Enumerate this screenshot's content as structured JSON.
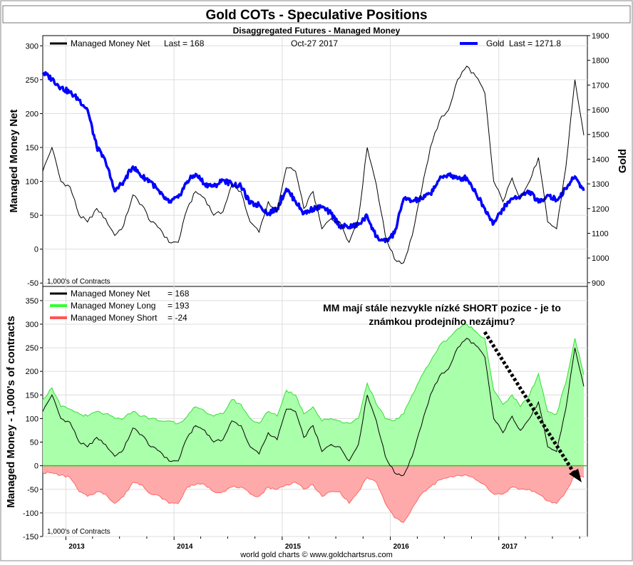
{
  "title": "Gold COTs - Speculative Positions",
  "subtitle": "Disaggregated Futures - Managed Money",
  "credit": "world gold charts © www.goldchartsrus.com",
  "annotation": {
    "line1": "MM mají stále nezvykle nízké SHORT pozice - je to",
    "line2": "známkou prodejního nezájmu?"
  },
  "colors": {
    "net": "#000000",
    "gold": "#0000ff",
    "long_fill": "#aaffaa",
    "long_line": "#33dd33",
    "short_fill": "#ffaaaa",
    "short_line": "#ff6666"
  },
  "x_axis": {
    "ticks": [
      "2013",
      "2014",
      "2015",
      "2016",
      "2017"
    ]
  },
  "chart_data": [
    {
      "type": "line",
      "xlabel": "",
      "ylabel": "Managed Money Net",
      "y2label": "Gold",
      "ylim": [
        -55,
        315
      ],
      "y2lim": [
        885,
        1900
      ],
      "yticks": [
        300,
        250,
        200,
        150,
        100,
        50,
        0,
        -50
      ],
      "y2ticks": [
        1900,
        1800,
        1700,
        1600,
        1500,
        1400,
        1300,
        1200,
        1100,
        1000,
        900
      ],
      "units_note": "1,000's of Contracts",
      "date_label": "Oct-27  2017",
      "legend": [
        {
          "name": "Managed Money Net",
          "last_label": "Last = 168"
        },
        {
          "name": "Gold",
          "last_label": "Last = 1271.8"
        }
      ],
      "series": [
        {
          "name": "Managed Money Net",
          "x": [
            "2012-10",
            "2012-11",
            "2012-12",
            "2013-01",
            "2013-02",
            "2013-03",
            "2013-04",
            "2013-05",
            "2013-06",
            "2013-07",
            "2013-08",
            "2013-09",
            "2013-10",
            "2013-11",
            "2013-12",
            "2014-01",
            "2014-02",
            "2014-03",
            "2014-04",
            "2014-05",
            "2014-06",
            "2014-07",
            "2014-08",
            "2014-09",
            "2014-10",
            "2014-11",
            "2014-12",
            "2015-01",
            "2015-02",
            "2015-03",
            "2015-04",
            "2015-05",
            "2015-06",
            "2015-07",
            "2015-08",
            "2015-09",
            "2015-10",
            "2015-11",
            "2015-12",
            "2016-01",
            "2016-02",
            "2016-03",
            "2016-04",
            "2016-05",
            "2016-06",
            "2016-07",
            "2016-08",
            "2016-09",
            "2016-10",
            "2016-11",
            "2016-12",
            "2017-01",
            "2017-02",
            "2017-03",
            "2017-04",
            "2017-05",
            "2017-06",
            "2017-07",
            "2017-08",
            "2017-09",
            "2017-10"
          ],
          "values": [
            115,
            150,
            100,
            92,
            50,
            40,
            60,
            45,
            20,
            35,
            80,
            65,
            40,
            30,
            10,
            10,
            60,
            85,
            75,
            50,
            55,
            95,
            85,
            40,
            25,
            70,
            55,
            120,
            115,
            60,
            85,
            30,
            45,
            40,
            10,
            45,
            150,
            95,
            20,
            -15,
            -20,
            20,
            85,
            150,
            190,
            205,
            250,
            270,
            255,
            230,
            100,
            70,
            105,
            75,
            100,
            135,
            40,
            30,
            120,
            250,
            168
          ]
        },
        {
          "name": "Gold",
          "axis": "right",
          "x": [
            "2012-10",
            "2012-11",
            "2012-12",
            "2013-01",
            "2013-02",
            "2013-03",
            "2013-04",
            "2013-05",
            "2013-06",
            "2013-07",
            "2013-08",
            "2013-09",
            "2013-10",
            "2013-11",
            "2013-12",
            "2014-01",
            "2014-02",
            "2014-03",
            "2014-04",
            "2014-05",
            "2014-06",
            "2014-07",
            "2014-08",
            "2014-09",
            "2014-10",
            "2014-11",
            "2014-12",
            "2015-01",
            "2015-02",
            "2015-03",
            "2015-04",
            "2015-05",
            "2015-06",
            "2015-07",
            "2015-08",
            "2015-09",
            "2015-10",
            "2015-11",
            "2015-12",
            "2016-01",
            "2016-02",
            "2016-03",
            "2016-04",
            "2016-05",
            "2016-06",
            "2016-07",
            "2016-08",
            "2016-09",
            "2016-10",
            "2016-11",
            "2016-12",
            "2017-01",
            "2017-02",
            "2017-03",
            "2017-04",
            "2017-05",
            "2017-06",
            "2017-07",
            "2017-08",
            "2017-09",
            "2017-10"
          ],
          "values": [
            1750,
            1725,
            1690,
            1670,
            1640,
            1600,
            1450,
            1390,
            1270,
            1310,
            1370,
            1330,
            1310,
            1260,
            1225,
            1245,
            1310,
            1340,
            1300,
            1290,
            1315,
            1300,
            1290,
            1220,
            1215,
            1180,
            1200,
            1280,
            1230,
            1180,
            1200,
            1205,
            1180,
            1130,
            1125,
            1135,
            1170,
            1085,
            1065,
            1100,
            1240,
            1230,
            1240,
            1260,
            1320,
            1340,
            1320,
            1325,
            1265,
            1200,
            1140,
            1200,
            1240,
            1250,
            1270,
            1225,
            1255,
            1235,
            1280,
            1330,
            1272
          ]
        }
      ]
    },
    {
      "type": "area",
      "xlabel": "",
      "ylabel": "Managed Money - 1,000's of contracts",
      "ylim": [
        -150,
        380
      ],
      "yticks": [
        350,
        300,
        250,
        200,
        150,
        100,
        50,
        0,
        -50,
        -100,
        -150
      ],
      "units_note": "1,000's of Contracts",
      "legend": [
        {
          "name": "Managed Money Net",
          "last_label": "= 168"
        },
        {
          "name": "Managed Money Long",
          "last_label": "= 193"
        },
        {
          "name": "Managed Money Short",
          "last_label": "= -24"
        }
      ],
      "series": [
        {
          "name": "Managed Money Long",
          "x": [
            "2012-10",
            "2012-11",
            "2012-12",
            "2013-01",
            "2013-02",
            "2013-03",
            "2013-04",
            "2013-05",
            "2013-06",
            "2013-07",
            "2013-08",
            "2013-09",
            "2013-10",
            "2013-11",
            "2013-12",
            "2014-01",
            "2014-02",
            "2014-03",
            "2014-04",
            "2014-05",
            "2014-06",
            "2014-07",
            "2014-08",
            "2014-09",
            "2014-10",
            "2014-11",
            "2014-12",
            "2015-01",
            "2015-02",
            "2015-03",
            "2015-04",
            "2015-05",
            "2015-06",
            "2015-07",
            "2015-08",
            "2015-09",
            "2015-10",
            "2015-11",
            "2015-12",
            "2016-01",
            "2016-02",
            "2016-03",
            "2016-04",
            "2016-05",
            "2016-06",
            "2016-07",
            "2016-08",
            "2016-09",
            "2016-10",
            "2016-11",
            "2016-12",
            "2017-01",
            "2017-02",
            "2017-03",
            "2017-04",
            "2017-05",
            "2017-06",
            "2017-07",
            "2017-08",
            "2017-09",
            "2017-10"
          ],
          "values": [
            140,
            165,
            125,
            120,
            110,
            105,
            115,
            110,
            100,
            100,
            115,
            105,
            100,
            95,
            95,
            90,
            105,
            125,
            115,
            105,
            110,
            140,
            130,
            100,
            90,
            115,
            105,
            160,
            150,
            110,
            125,
            95,
            100,
            95,
            90,
            100,
            175,
            130,
            100,
            95,
            110,
            150,
            190,
            220,
            255,
            270,
            290,
            300,
            285,
            270,
            160,
            130,
            150,
            125,
            150,
            195,
            115,
            110,
            175,
            270,
            193
          ]
        },
        {
          "name": "Managed Money Short",
          "x": [
            "2012-10",
            "2012-11",
            "2012-12",
            "2013-01",
            "2013-02",
            "2013-03",
            "2013-04",
            "2013-05",
            "2013-06",
            "2013-07",
            "2013-08",
            "2013-09",
            "2013-10",
            "2013-11",
            "2013-12",
            "2014-01",
            "2014-02",
            "2014-03",
            "2014-04",
            "2014-05",
            "2014-06",
            "2014-07",
            "2014-08",
            "2014-09",
            "2014-10",
            "2014-11",
            "2014-12",
            "2015-01",
            "2015-02",
            "2015-03",
            "2015-04",
            "2015-05",
            "2015-06",
            "2015-07",
            "2015-08",
            "2015-09",
            "2015-10",
            "2015-11",
            "2015-12",
            "2016-01",
            "2016-02",
            "2016-03",
            "2016-04",
            "2016-05",
            "2016-06",
            "2016-07",
            "2016-08",
            "2016-09",
            "2016-10",
            "2016-11",
            "2016-12",
            "2017-01",
            "2017-02",
            "2017-03",
            "2017-04",
            "2017-05",
            "2017-06",
            "2017-07",
            "2017-08",
            "2017-09",
            "2017-10"
          ],
          "values": [
            -15,
            -15,
            -20,
            -25,
            -55,
            -65,
            -55,
            -60,
            -80,
            -65,
            -35,
            -40,
            -60,
            -65,
            -80,
            -80,
            -45,
            -40,
            -40,
            -55,
            -55,
            -45,
            -45,
            -60,
            -65,
            -45,
            -50,
            -40,
            -35,
            -50,
            -40,
            -65,
            -55,
            -55,
            -80,
            -55,
            -25,
            -35,
            -80,
            -110,
            -120,
            -90,
            -60,
            -45,
            -30,
            -25,
            -20,
            -20,
            -30,
            -40,
            -60,
            -60,
            -45,
            -50,
            -50,
            -60,
            -75,
            -80,
            -55,
            -20,
            -24
          ]
        },
        {
          "name": "Managed Money Net",
          "x": [
            "2012-10",
            "2012-11",
            "2012-12",
            "2013-01",
            "2013-02",
            "2013-03",
            "2013-04",
            "2013-05",
            "2013-06",
            "2013-07",
            "2013-08",
            "2013-09",
            "2013-10",
            "2013-11",
            "2013-12",
            "2014-01",
            "2014-02",
            "2014-03",
            "2014-04",
            "2014-05",
            "2014-06",
            "2014-07",
            "2014-08",
            "2014-09",
            "2014-10",
            "2014-11",
            "2014-12",
            "2015-01",
            "2015-02",
            "2015-03",
            "2015-04",
            "2015-05",
            "2015-06",
            "2015-07",
            "2015-08",
            "2015-09",
            "2015-10",
            "2015-11",
            "2015-12",
            "2016-01",
            "2016-02",
            "2016-03",
            "2016-04",
            "2016-05",
            "2016-06",
            "2016-07",
            "2016-08",
            "2016-09",
            "2016-10",
            "2016-11",
            "2016-12",
            "2017-01",
            "2017-02",
            "2017-03",
            "2017-04",
            "2017-05",
            "2017-06",
            "2017-07",
            "2017-08",
            "2017-09",
            "2017-10"
          ],
          "values": [
            115,
            150,
            100,
            92,
            50,
            40,
            60,
            45,
            20,
            35,
            80,
            65,
            40,
            30,
            10,
            10,
            60,
            85,
            75,
            50,
            55,
            95,
            85,
            40,
            25,
            70,
            55,
            120,
            115,
            60,
            85,
            30,
            45,
            40,
            10,
            45,
            150,
            95,
            20,
            -15,
            -20,
            20,
            85,
            150,
            190,
            205,
            250,
            270,
            255,
            230,
            100,
            70,
            105,
            75,
            100,
            135,
            40,
            30,
            120,
            250,
            168
          ]
        }
      ]
    }
  ]
}
